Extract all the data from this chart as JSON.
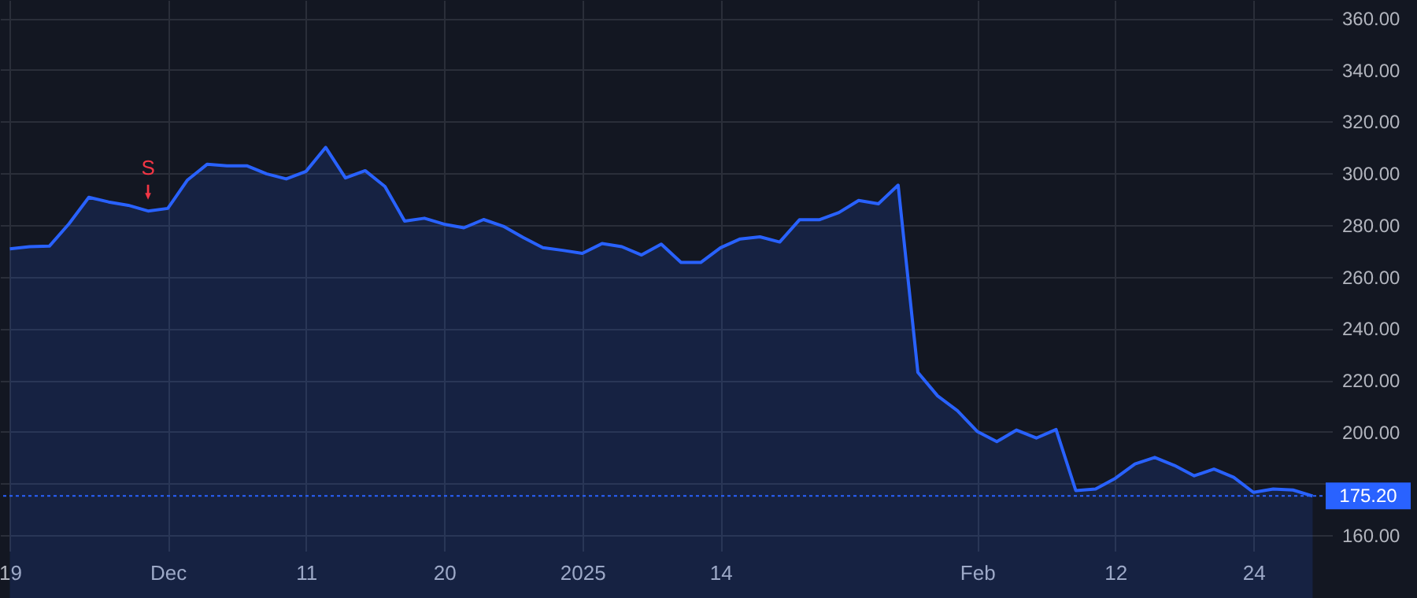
{
  "chart_data": {
    "type": "area",
    "categories": [
      "19",
      null,
      null,
      null,
      null,
      null,
      null,
      null,
      "Dec",
      null,
      null,
      null,
      null,
      null,
      null,
      "11",
      null,
      null,
      null,
      null,
      null,
      null,
      "20",
      null,
      null,
      null,
      null,
      null,
      null,
      "2025",
      null,
      null,
      null,
      null,
      null,
      null,
      "14",
      null,
      null,
      null,
      null,
      null,
      null,
      null,
      null,
      null,
      null,
      null,
      null,
      "Feb",
      null,
      null,
      null,
      null,
      null,
      null,
      "12",
      null,
      null,
      null,
      null,
      null,
      null,
      "24",
      null,
      null,
      null
    ],
    "series": [
      {
        "color": "#2962ff",
        "values": [
          270.8,
          271.6,
          271.8,
          280.5,
          290.7,
          288.9,
          287.6,
          285.4,
          286.4,
          297.4,
          303.5,
          302.9,
          302.9,
          299.8,
          297.8,
          300.7,
          310.0,
          298.2,
          301.0,
          294.9,
          281.5,
          282.6,
          280.3,
          278.9,
          282.1,
          279.5,
          275.2,
          271.2,
          270.2,
          269.0,
          272.8,
          271.6,
          268.4,
          272.6,
          265.5,
          265.5,
          271.2,
          274.6,
          275.4,
          273.4,
          282.0,
          282.0,
          284.8,
          289.5,
          288.2,
          295.4,
          223.0,
          213.9,
          208.2,
          200.2,
          196.2,
          200.7,
          197.6,
          200.9,
          177.3,
          177.9,
          182.0,
          187.6,
          190.1,
          187.0,
          183.0,
          185.6,
          182.4,
          176.6,
          177.9,
          177.5,
          175.2
        ]
      }
    ],
    "ylim": [
      154,
      367
    ],
    "yticks": [
      {
        "value": 160,
        "label": "160.00"
      },
      {
        "value": 180,
        "label": null
      },
      {
        "value": 200,
        "label": "200.00"
      },
      {
        "value": 220,
        "label": "220.00"
      },
      {
        "value": 240,
        "label": "240.00"
      },
      {
        "value": 260,
        "label": "260.00"
      },
      {
        "value": 280,
        "label": "280.00"
      },
      {
        "value": 300,
        "label": "300.00"
      },
      {
        "value": 320,
        "label": "320.00"
      },
      {
        "value": 340,
        "label": "340.00"
      },
      {
        "value": 360,
        "label": "360.00"
      }
    ],
    "ref_lines": [
      {
        "axis": "y",
        "value": 175.2,
        "label": "175.20",
        "color": "#2962ff",
        "line_style": "dotted"
      }
    ],
    "annotations": [
      {
        "text": "S",
        "y": 285.4
      }
    ],
    "grid": true
  }
}
